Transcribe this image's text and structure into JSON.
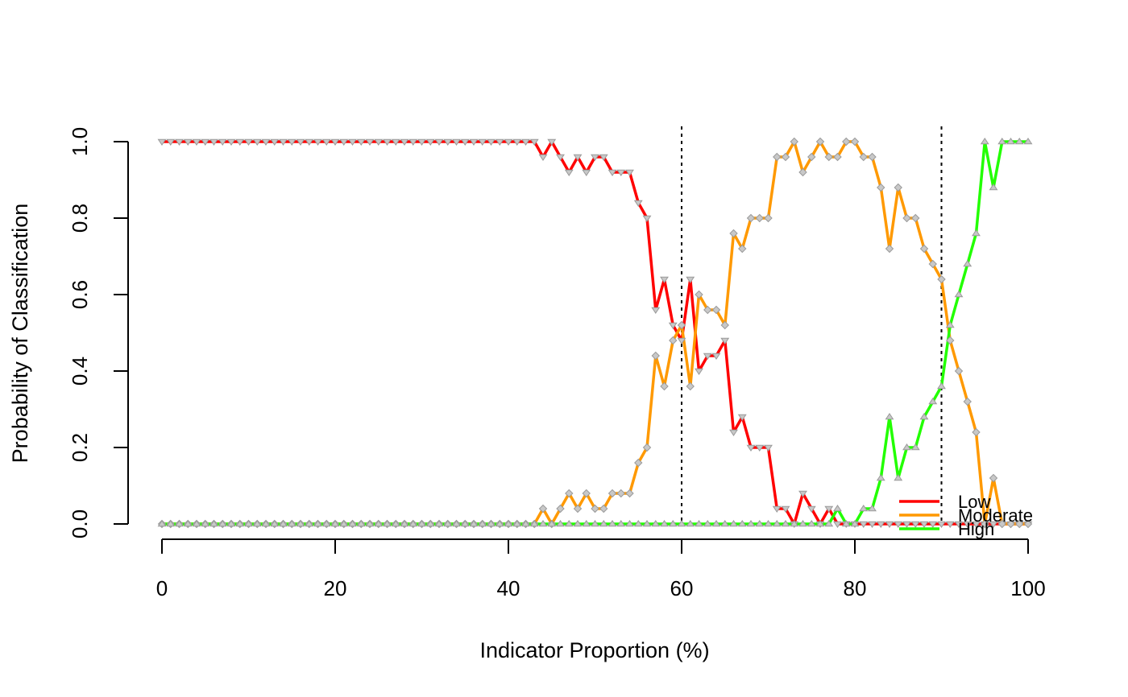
{
  "chart_data": {
    "type": "line",
    "title": "",
    "xlabel": "Indicator Proportion (%)",
    "ylabel": "Probability of Classification",
    "xlim": [
      0,
      100
    ],
    "ylim": [
      0,
      1
    ],
    "x_ticks": [
      0,
      20,
      40,
      60,
      80,
      100
    ],
    "x_tick_labels": [
      "0",
      "20",
      "40",
      "60",
      "80",
      "100"
    ],
    "y_ticks": [
      0,
      0.2,
      0.4,
      0.6,
      0.8,
      1
    ],
    "y_tick_labels": [
      "0.0",
      "0.2",
      "0.4",
      "0.6",
      "0.8",
      "1.0"
    ],
    "grid": false,
    "reference_lines": [
      60,
      90
    ],
    "legend_position": "bottom-right",
    "x": [
      0,
      1,
      2,
      3,
      4,
      5,
      6,
      7,
      8,
      9,
      10,
      11,
      12,
      13,
      14,
      15,
      16,
      17,
      18,
      19,
      20,
      21,
      22,
      23,
      24,
      25,
      26,
      27,
      28,
      29,
      30,
      31,
      32,
      33,
      34,
      35,
      36,
      37,
      38,
      39,
      40,
      41,
      42,
      43,
      44,
      45,
      46,
      47,
      48,
      49,
      50,
      51,
      52,
      53,
      54,
      55,
      56,
      57,
      58,
      59,
      60,
      61,
      62,
      63,
      64,
      65,
      66,
      67,
      68,
      69,
      70,
      71,
      72,
      73,
      74,
      75,
      76,
      77,
      78,
      79,
      80,
      81,
      82,
      83,
      84,
      85,
      86,
      87,
      88,
      89,
      90,
      91,
      92,
      93,
      94,
      95,
      96,
      97,
      98,
      99,
      100
    ],
    "series": [
      {
        "name": "Low",
        "color": "#ff0000",
        "marker": "triangle-down",
        "values": [
          1,
          1,
          1,
          1,
          1,
          1,
          1,
          1,
          1,
          1,
          1,
          1,
          1,
          1,
          1,
          1,
          1,
          1,
          1,
          1,
          1,
          1,
          1,
          1,
          1,
          1,
          1,
          1,
          1,
          1,
          1,
          1,
          1,
          1,
          1,
          1,
          1,
          1,
          1,
          1,
          1,
          1,
          1,
          1,
          0.96,
          1,
          0.96,
          0.92,
          0.96,
          0.92,
          0.96,
          0.96,
          0.92,
          0.92,
          0.92,
          0.84,
          0.8,
          0.56,
          0.64,
          0.52,
          0.48,
          0.64,
          0.4,
          0.44,
          0.44,
          0.48,
          0.24,
          0.28,
          0.2,
          0.2,
          0.2,
          0.04,
          0.04,
          0,
          0.08,
          0.04,
          0,
          0.04,
          0,
          0,
          0,
          0,
          0,
          0,
          0,
          0,
          0,
          0,
          0,
          0,
          0,
          0,
          0,
          0,
          0,
          0,
          0,
          0,
          0,
          0,
          0
        ]
      },
      {
        "name": "Moderate",
        "color": "#ff9900",
        "marker": "diamond",
        "values": [
          0,
          0,
          0,
          0,
          0,
          0,
          0,
          0,
          0,
          0,
          0,
          0,
          0,
          0,
          0,
          0,
          0,
          0,
          0,
          0,
          0,
          0,
          0,
          0,
          0,
          0,
          0,
          0,
          0,
          0,
          0,
          0,
          0,
          0,
          0,
          0,
          0,
          0,
          0,
          0,
          0,
          0,
          0,
          0,
          0.04,
          0,
          0.04,
          0.08,
          0.04,
          0.08,
          0.04,
          0.04,
          0.08,
          0.08,
          0.08,
          0.16,
          0.2,
          0.44,
          0.36,
          0.48,
          0.52,
          0.36,
          0.6,
          0.56,
          0.56,
          0.52,
          0.76,
          0.72,
          0.8,
          0.8,
          0.8,
          0.96,
          0.96,
          1,
          0.92,
          0.96,
          1,
          0.96,
          0.96,
          1,
          1,
          0.96,
          0.96,
          0.88,
          0.72,
          0.88,
          0.8,
          0.8,
          0.72,
          0.68,
          0.64,
          0.48,
          0.4,
          0.32,
          0.24,
          0,
          0.12,
          0,
          0,
          0,
          0
        ]
      },
      {
        "name": "High",
        "color": "#22ff00",
        "marker": "triangle-up",
        "values": [
          0,
          0,
          0,
          0,
          0,
          0,
          0,
          0,
          0,
          0,
          0,
          0,
          0,
          0,
          0,
          0,
          0,
          0,
          0,
          0,
          0,
          0,
          0,
          0,
          0,
          0,
          0,
          0,
          0,
          0,
          0,
          0,
          0,
          0,
          0,
          0,
          0,
          0,
          0,
          0,
          0,
          0,
          0,
          0,
          0,
          0,
          0,
          0,
          0,
          0,
          0,
          0,
          0,
          0,
          0,
          0,
          0,
          0,
          0,
          0,
          0,
          0,
          0,
          0,
          0,
          0,
          0,
          0,
          0,
          0,
          0,
          0,
          0,
          0,
          0,
          0,
          0,
          0,
          0.04,
          0,
          0,
          0.04,
          0.04,
          0.12,
          0.28,
          0.12,
          0.2,
          0.2,
          0.28,
          0.32,
          0.36,
          0.52,
          0.6,
          0.68,
          0.76,
          1,
          0.88,
          1,
          1,
          1,
          1
        ]
      }
    ]
  }
}
